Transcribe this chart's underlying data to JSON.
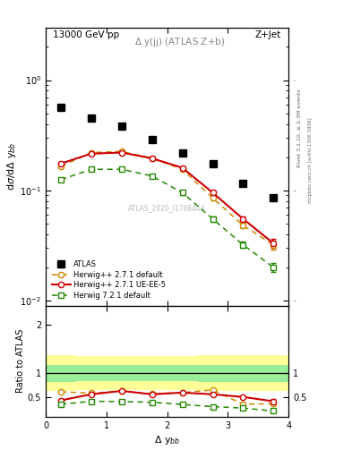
{
  "title_left": "13000 GeV pp",
  "title_right": "Z+Jet",
  "annotation_text": "Δ y(jj) (ATLAS Z+b)",
  "watermark": "ATLAS_2020_I1788444",
  "right_label1": "Rivet 3.1.10, ≥ 2.3M events",
  "right_label2": "mcplots.cern.ch [arXiv:1306.3436]",
  "ylabel_main": "dσ/dΔ y$_{bb}$",
  "ylabel_ratio": "Ratio to ATLAS",
  "xlabel": "Δ y$_{bb}$",
  "atlas_x": [
    0.25,
    0.75,
    1.25,
    1.75,
    2.25,
    2.75,
    3.25,
    3.75
  ],
  "atlas_y": [
    0.57,
    0.45,
    0.38,
    0.29,
    0.22,
    0.175,
    0.115,
    0.085
  ],
  "herwig271_default_x": [
    0.25,
    0.75,
    1.25,
    1.75,
    2.25,
    2.75,
    3.25,
    3.75
  ],
  "herwig271_default_y": [
    0.165,
    0.22,
    0.225,
    0.195,
    0.155,
    0.085,
    0.048,
    0.032
  ],
  "herwig271_default_yerr": [
    0.005,
    0.006,
    0.006,
    0.006,
    0.005,
    0.004,
    0.003,
    0.003
  ],
  "herwig271_ueee5_x": [
    0.25,
    0.75,
    1.25,
    1.75,
    2.25,
    2.75,
    3.25,
    3.75
  ],
  "herwig271_ueee5_y": [
    0.175,
    0.215,
    0.22,
    0.195,
    0.16,
    0.095,
    0.055,
    0.033
  ],
  "herwig271_ueee5_yerr": [
    0.005,
    0.006,
    0.006,
    0.006,
    0.005,
    0.004,
    0.003,
    0.003
  ],
  "herwig721_default_x": [
    0.25,
    0.75,
    1.25,
    1.75,
    2.25,
    2.75,
    3.25,
    3.75
  ],
  "herwig721_default_y": [
    0.125,
    0.155,
    0.155,
    0.135,
    0.095,
    0.055,
    0.032,
    0.02
  ],
  "herwig721_default_yerr": [
    0.004,
    0.005,
    0.005,
    0.005,
    0.004,
    0.003,
    0.002,
    0.002
  ],
  "ratio_herwig271_default_y": [
    0.615,
    0.59,
    0.63,
    0.575,
    0.6,
    0.655,
    0.36,
    0.37
  ],
  "ratio_herwig271_default_yerr": [
    0.02,
    0.02,
    0.02,
    0.02,
    0.02,
    0.03,
    0.03,
    0.03
  ],
  "ratio_herwig271_ueee5_y": [
    0.44,
    0.565,
    0.635,
    0.565,
    0.6,
    0.565,
    0.51,
    0.42
  ],
  "ratio_herwig271_ueee5_yerr": [
    0.02,
    0.02,
    0.02,
    0.02,
    0.02,
    0.025,
    0.03,
    0.04
  ],
  "ratio_herwig721_default_y": [
    0.36,
    0.42,
    0.415,
    0.4,
    0.355,
    0.31,
    0.28,
    0.22
  ],
  "ratio_herwig721_default_yerr": [
    0.01,
    0.015,
    0.015,
    0.015,
    0.015,
    0.015,
    0.015,
    0.015
  ],
  "band_edges": [
    0.0,
    0.5,
    1.0,
    1.5,
    2.0,
    2.5,
    3.0,
    3.5,
    4.0
  ],
  "band_yellow_lo": [
    0.63,
    0.65,
    0.65,
    0.65,
    0.65,
    0.63,
    0.63,
    0.63
  ],
  "band_yellow_hi": [
    1.37,
    1.35,
    1.35,
    1.35,
    1.35,
    1.37,
    1.37,
    1.37
  ],
  "band_green_lo": [
    0.82,
    0.83,
    0.83,
    0.83,
    0.83,
    0.82,
    0.82,
    0.82
  ],
  "band_green_hi": [
    1.18,
    1.17,
    1.17,
    1.17,
    1.17,
    1.18,
    1.18,
    1.18
  ],
  "color_atlas": "#000000",
  "color_herwig271_default": "#cc8800",
  "color_herwig271_ueee5": "#cc0000",
  "color_herwig721_default": "#228800",
  "ylim_main": [
    0.009,
    3.0
  ],
  "xlim": [
    0.0,
    4.0
  ],
  "ratio_ylim": [
    0.1,
    2.4
  ]
}
